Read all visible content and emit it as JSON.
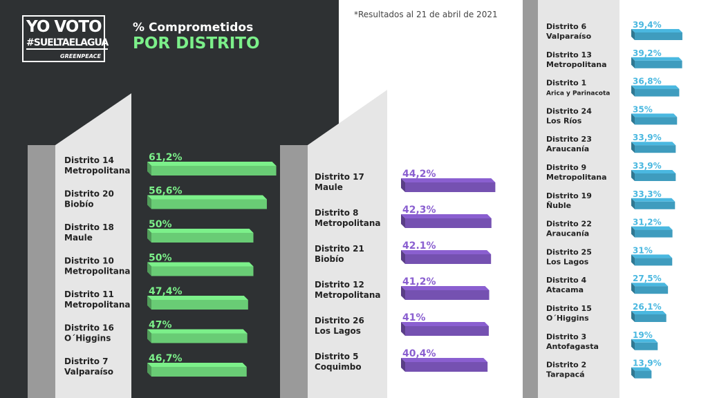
{
  "logo": {
    "line1": "YO VOTO",
    "line2": "#SUELTAELAGUA",
    "brand": "GREENPEACE"
  },
  "title": {
    "line1": "% Comprometidos",
    "line2": "POR DISTRITO"
  },
  "note": "*Resultados al 21 de abril de 2021",
  "colors": {
    "green": "#7cf08a",
    "purple": "#8a5fd0",
    "blue": "#4ab8e0",
    "dark": "#2e3133",
    "panel": "#e6e6e6"
  },
  "chart_data": [
    {
      "type": "bar",
      "color": "#7cf08a",
      "categories": [
        [
          "Distrito 14",
          "Metropolitana"
        ],
        [
          "Distrito 20",
          "Biobío"
        ],
        [
          "Distrito 18",
          "Maule"
        ],
        [
          "Distrito 10",
          "Metropolitana"
        ],
        [
          "Distrito 11",
          "Metropolitana"
        ],
        [
          "Distrito 16",
          "O´Higgins"
        ],
        [
          "Distrito 7",
          "Valparaíso"
        ]
      ],
      "values": [
        61.2,
        56.6,
        50,
        50,
        47.4,
        47,
        46.7
      ],
      "labels": [
        "61,2%",
        "56,6%",
        "50%",
        "50%",
        "47,4%",
        "47%",
        "46,7%"
      ]
    },
    {
      "type": "bar",
      "color": "#8a5fd0",
      "categories": [
        [
          "Distrito 17",
          "Maule"
        ],
        [
          "Distrito 8",
          "Metropolitana"
        ],
        [
          "Distrito 21",
          "Biobío"
        ],
        [
          "Distrito 12",
          "Metropolitana"
        ],
        [
          "Distrito 26",
          "Los Lagos"
        ],
        [
          "Distrito 5",
          "Coquimbo"
        ]
      ],
      "values": [
        44.2,
        42.3,
        42.1,
        41.2,
        41,
        40.4
      ],
      "labels": [
        "44,2%",
        "42,3%",
        "42.1%",
        "41,2%",
        "41%",
        "40,4%"
      ]
    },
    {
      "type": "bar",
      "color": "#4ab8e0",
      "categories": [
        [
          "Distrito 6",
          "Valparaíso"
        ],
        [
          "Distrito 13",
          "Metropolitana"
        ],
        [
          "Distrito 1",
          "Arica y Parinacota"
        ],
        [
          "Distrito 24",
          "Los Ríos"
        ],
        [
          "Distrito 23",
          "Araucanía"
        ],
        [
          "Distrito 9",
          "Metropolitana"
        ],
        [
          "Distrito 19",
          "Ñuble"
        ],
        [
          "Distrito 22",
          "Araucanía"
        ],
        [
          "Distrito 25",
          "Los Lagos"
        ],
        [
          "Distrito 4",
          "Atacama"
        ],
        [
          "Distrito 15",
          "O´Higgins"
        ],
        [
          "Distrito 3",
          "Antofagasta"
        ],
        [
          "Distrito 2",
          "Tarapacá"
        ]
      ],
      "values": [
        39.4,
        39.2,
        36.8,
        35,
        33.9,
        33.9,
        33.3,
        31.2,
        31,
        27.5,
        26.1,
        19,
        13.9
      ],
      "labels": [
        "39,4%",
        "39,2%",
        "36,8%",
        "35%",
        "33,9%",
        "33,9%",
        "33,3%",
        "31,2%",
        "31%",
        "27,5%",
        "26,1%",
        "19%",
        "13,9%"
      ]
    }
  ]
}
